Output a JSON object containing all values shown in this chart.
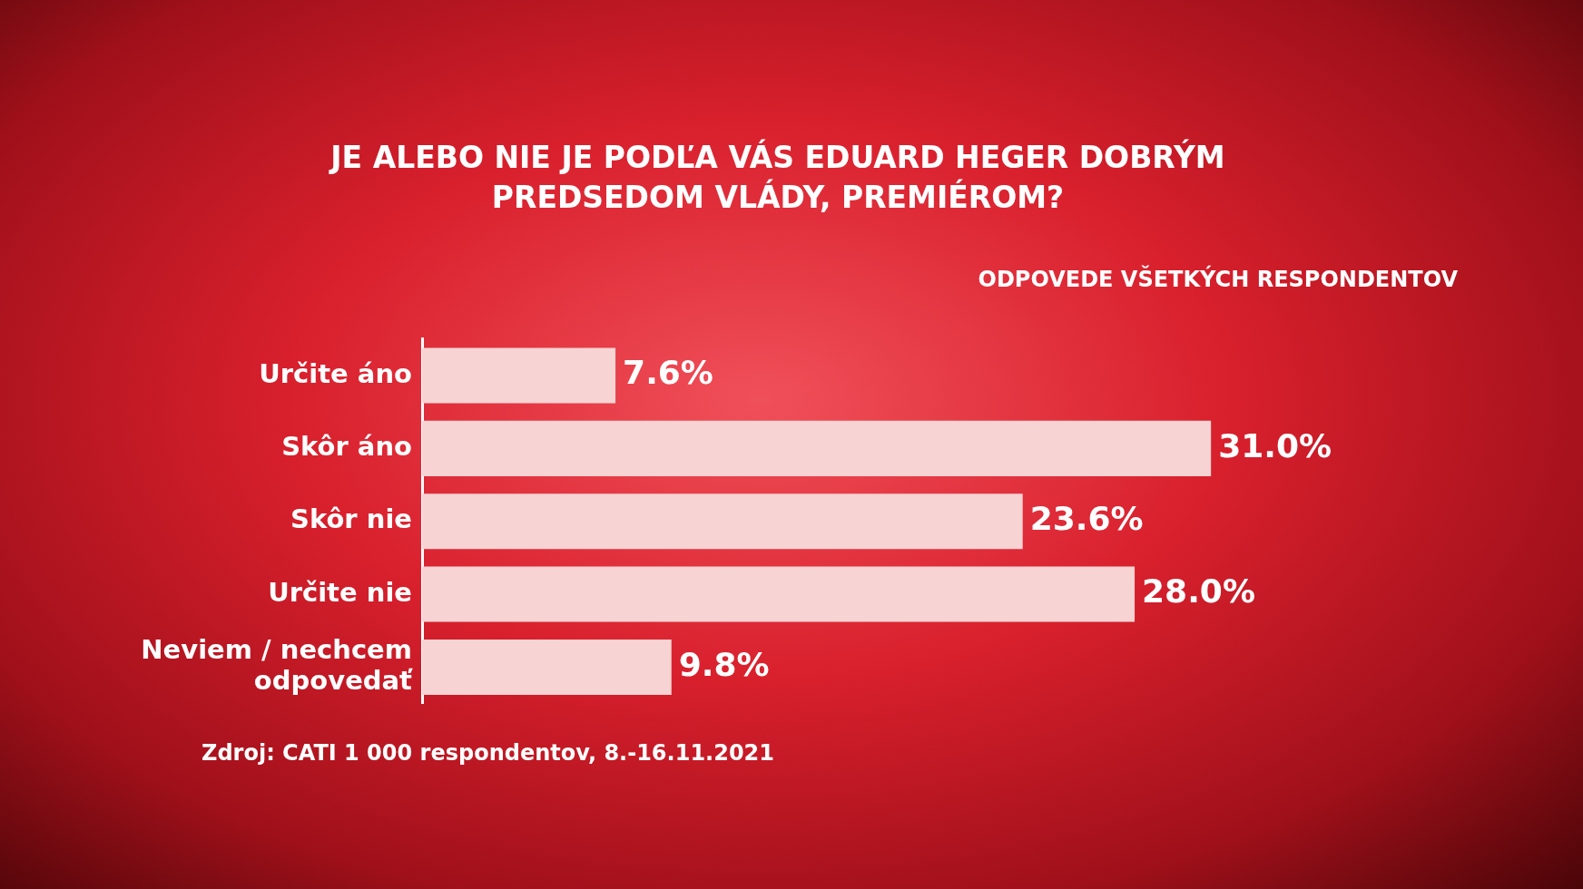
{
  "chart_data": {
    "type": "bar",
    "orientation": "horizontal",
    "title": "JE ALEBO NIE JE PODĽA VÁS EDUARD HEGER DOBRÝM PREDSEDOM VLÁDY, PREMIÉROM?",
    "subtitle": "ODPOVEDE VŠETKÝCH RESPONDENTOV",
    "categories": [
      "Určite áno",
      "Skôr áno",
      "Skôr nie",
      "Určite nie",
      "Neviem / nechcem odpovedať"
    ],
    "values": [
      7.6,
      31.0,
      23.6,
      28.0,
      9.8
    ],
    "value_labels": [
      "7.6%",
      "31.0%",
      "23.6%",
      "28.0%",
      "9.8%"
    ],
    "color": "#f7d3d3",
    "annotations": [
      "Zdroj: CATI 1 000 respondentov, 8.-16.11.2021"
    ],
    "legend": false
  }
}
